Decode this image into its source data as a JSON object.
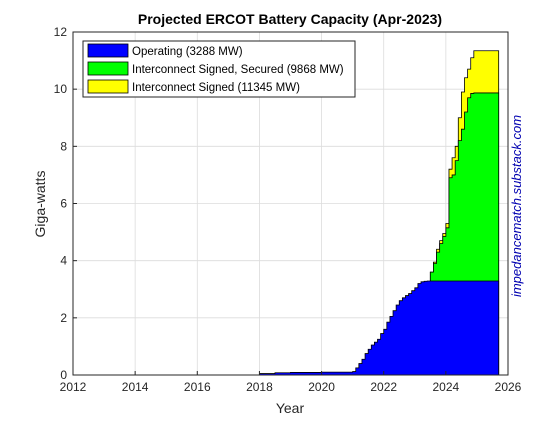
{
  "chart_data": {
    "type": "area",
    "stacked": true,
    "title": "Projected ERCOT Battery Capacity (Apr-2023)",
    "xlabel": "Year",
    "ylabel": "Giga-watts",
    "xlim": [
      2012,
      2026
    ],
    "ylim": [
      0,
      12
    ],
    "xticks": [
      2012,
      2014,
      2016,
      2018,
      2020,
      2022,
      2024,
      2026
    ],
    "yticks": [
      0,
      2,
      4,
      6,
      8,
      10,
      12
    ],
    "grid": true,
    "legend_position": "top-left",
    "watermark": "impedancematch.substack.com",
    "series": [
      {
        "name": "Operating (3288 MW)",
        "color": "#0000ff",
        "x": [
          2013.0,
          2018.0,
          2018.5,
          2019.0,
          2020.0,
          2021.0,
          2021.1,
          2021.2,
          2021.3,
          2021.4,
          2021.5,
          2021.6,
          2021.7,
          2021.8,
          2021.9,
          2022.0,
          2022.1,
          2022.2,
          2022.3,
          2022.4,
          2022.5,
          2022.6,
          2022.7,
          2022.8,
          2022.9,
          2023.0,
          2023.1,
          2023.2,
          2023.3,
          2023.4,
          2023.6,
          2024.0,
          2025.0,
          2025.7
        ],
        "values": [
          0.0,
          0.05,
          0.08,
          0.09,
          0.1,
          0.12,
          0.25,
          0.4,
          0.55,
          0.75,
          0.9,
          1.05,
          1.15,
          1.25,
          1.45,
          1.6,
          1.85,
          2.05,
          2.25,
          2.45,
          2.6,
          2.7,
          2.78,
          2.85,
          2.95,
          3.05,
          3.2,
          3.26,
          3.28,
          3.288,
          3.288,
          3.288,
          3.288,
          3.288
        ]
      },
      {
        "name": "Interconnect Signed, Secured (9868 MW)",
        "color": "#00ff00",
        "x": [
          2013.0,
          2023.5,
          2023.6,
          2023.7,
          2023.8,
          2023.9,
          2024.0,
          2024.1,
          2024.2,
          2024.3,
          2024.4,
          2024.5,
          2024.6,
          2024.7,
          2024.8,
          2024.9,
          2025.0,
          2025.1,
          2025.7
        ],
        "values": [
          0.0,
          3.6,
          3.9,
          4.3,
          4.6,
          4.85,
          5.15,
          6.9,
          7.0,
          7.5,
          8.2,
          8.6,
          9.2,
          9.7,
          9.85,
          9.868,
          9.868,
          9.868,
          9.868
        ]
      },
      {
        "name": "Interconnect Signed (11345 MW)",
        "color": "#ffff00",
        "x": [
          2013.0,
          2023.5,
          2023.6,
          2023.7,
          2023.8,
          2023.9,
          2024.0,
          2024.1,
          2024.2,
          2024.3,
          2024.4,
          2024.5,
          2024.6,
          2024.7,
          2024.8,
          2024.9,
          2025.0,
          2025.1,
          2025.7
        ],
        "values": [
          0.0,
          3.6,
          3.95,
          4.4,
          4.7,
          4.95,
          5.3,
          7.2,
          7.6,
          8.0,
          9.0,
          9.9,
          10.4,
          10.7,
          11.1,
          11.345,
          11.345,
          11.345,
          11.345
        ]
      }
    ]
  }
}
